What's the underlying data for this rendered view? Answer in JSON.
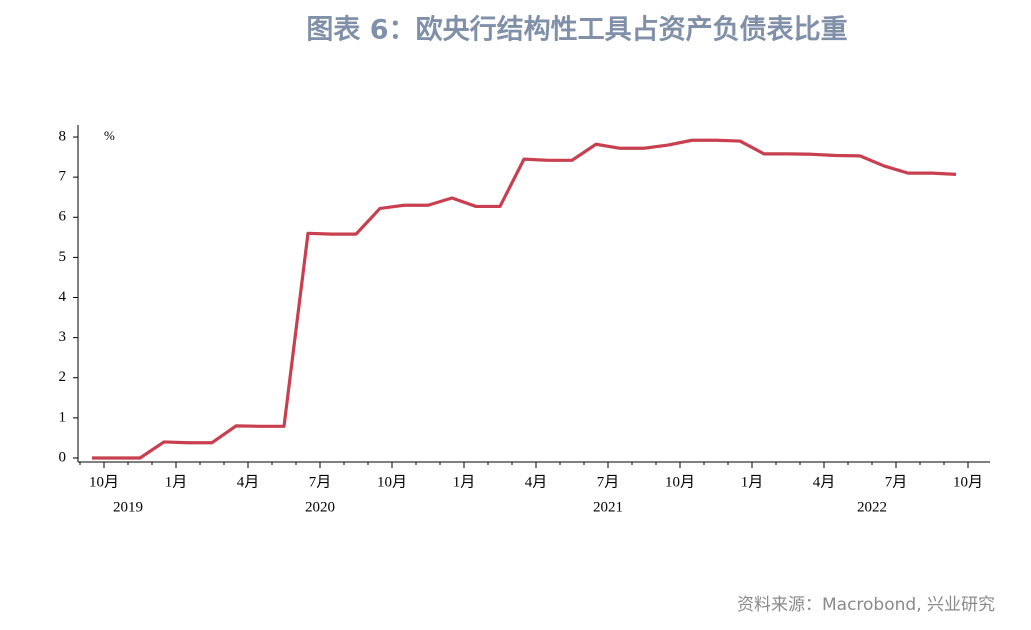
{
  "chart_data": {
    "type": "line",
    "title": "图表 6：欧央行结构性工具占资产负债表比重",
    "y_unit": "%",
    "source": "资料来源：Macrobond, 兴业研究",
    "categories": [
      null,
      "10月",
      null,
      null,
      "1月",
      null,
      null,
      "4月",
      null,
      null,
      "7月",
      null,
      null,
      "10月",
      null,
      null,
      "1月",
      null,
      null,
      "4月",
      null,
      null,
      "7月",
      null,
      null,
      "10月",
      null,
      null,
      "1月",
      null,
      null,
      "4月",
      null,
      null,
      "7月",
      null,
      null,
      "10月"
    ],
    "x_groups": [
      {
        "name": "2019",
        "count": 4
      },
      {
        "name": "2020",
        "count": 12
      },
      {
        "name": "2021",
        "count": 12
      },
      {
        "name": "2022",
        "count": 10
      }
    ],
    "series": [
      {
        "name": "欧央行结构性工具占资产负债表比重",
        "color": "#c8404f",
        "values": [
          0,
          0,
          0,
          0.4,
          0.38,
          0.38,
          0.8,
          0.79,
          0.79,
          5.6,
          5.58,
          5.58,
          6.22,
          6.3,
          6.3,
          6.48,
          6.27,
          6.27,
          7.45,
          7.42,
          7.42,
          7.82,
          7.72,
          7.72,
          7.8,
          7.92,
          7.92,
          7.9,
          7.58,
          7.58,
          7.57,
          7.54,
          7.53,
          7.28,
          7.1,
          7.1,
          7.07,
          null
        ]
      }
    ],
    "ylim": [
      -0.1,
      8.3
    ],
    "yticks": [
      0,
      1,
      2,
      3,
      4,
      5,
      6,
      7,
      8
    ]
  }
}
